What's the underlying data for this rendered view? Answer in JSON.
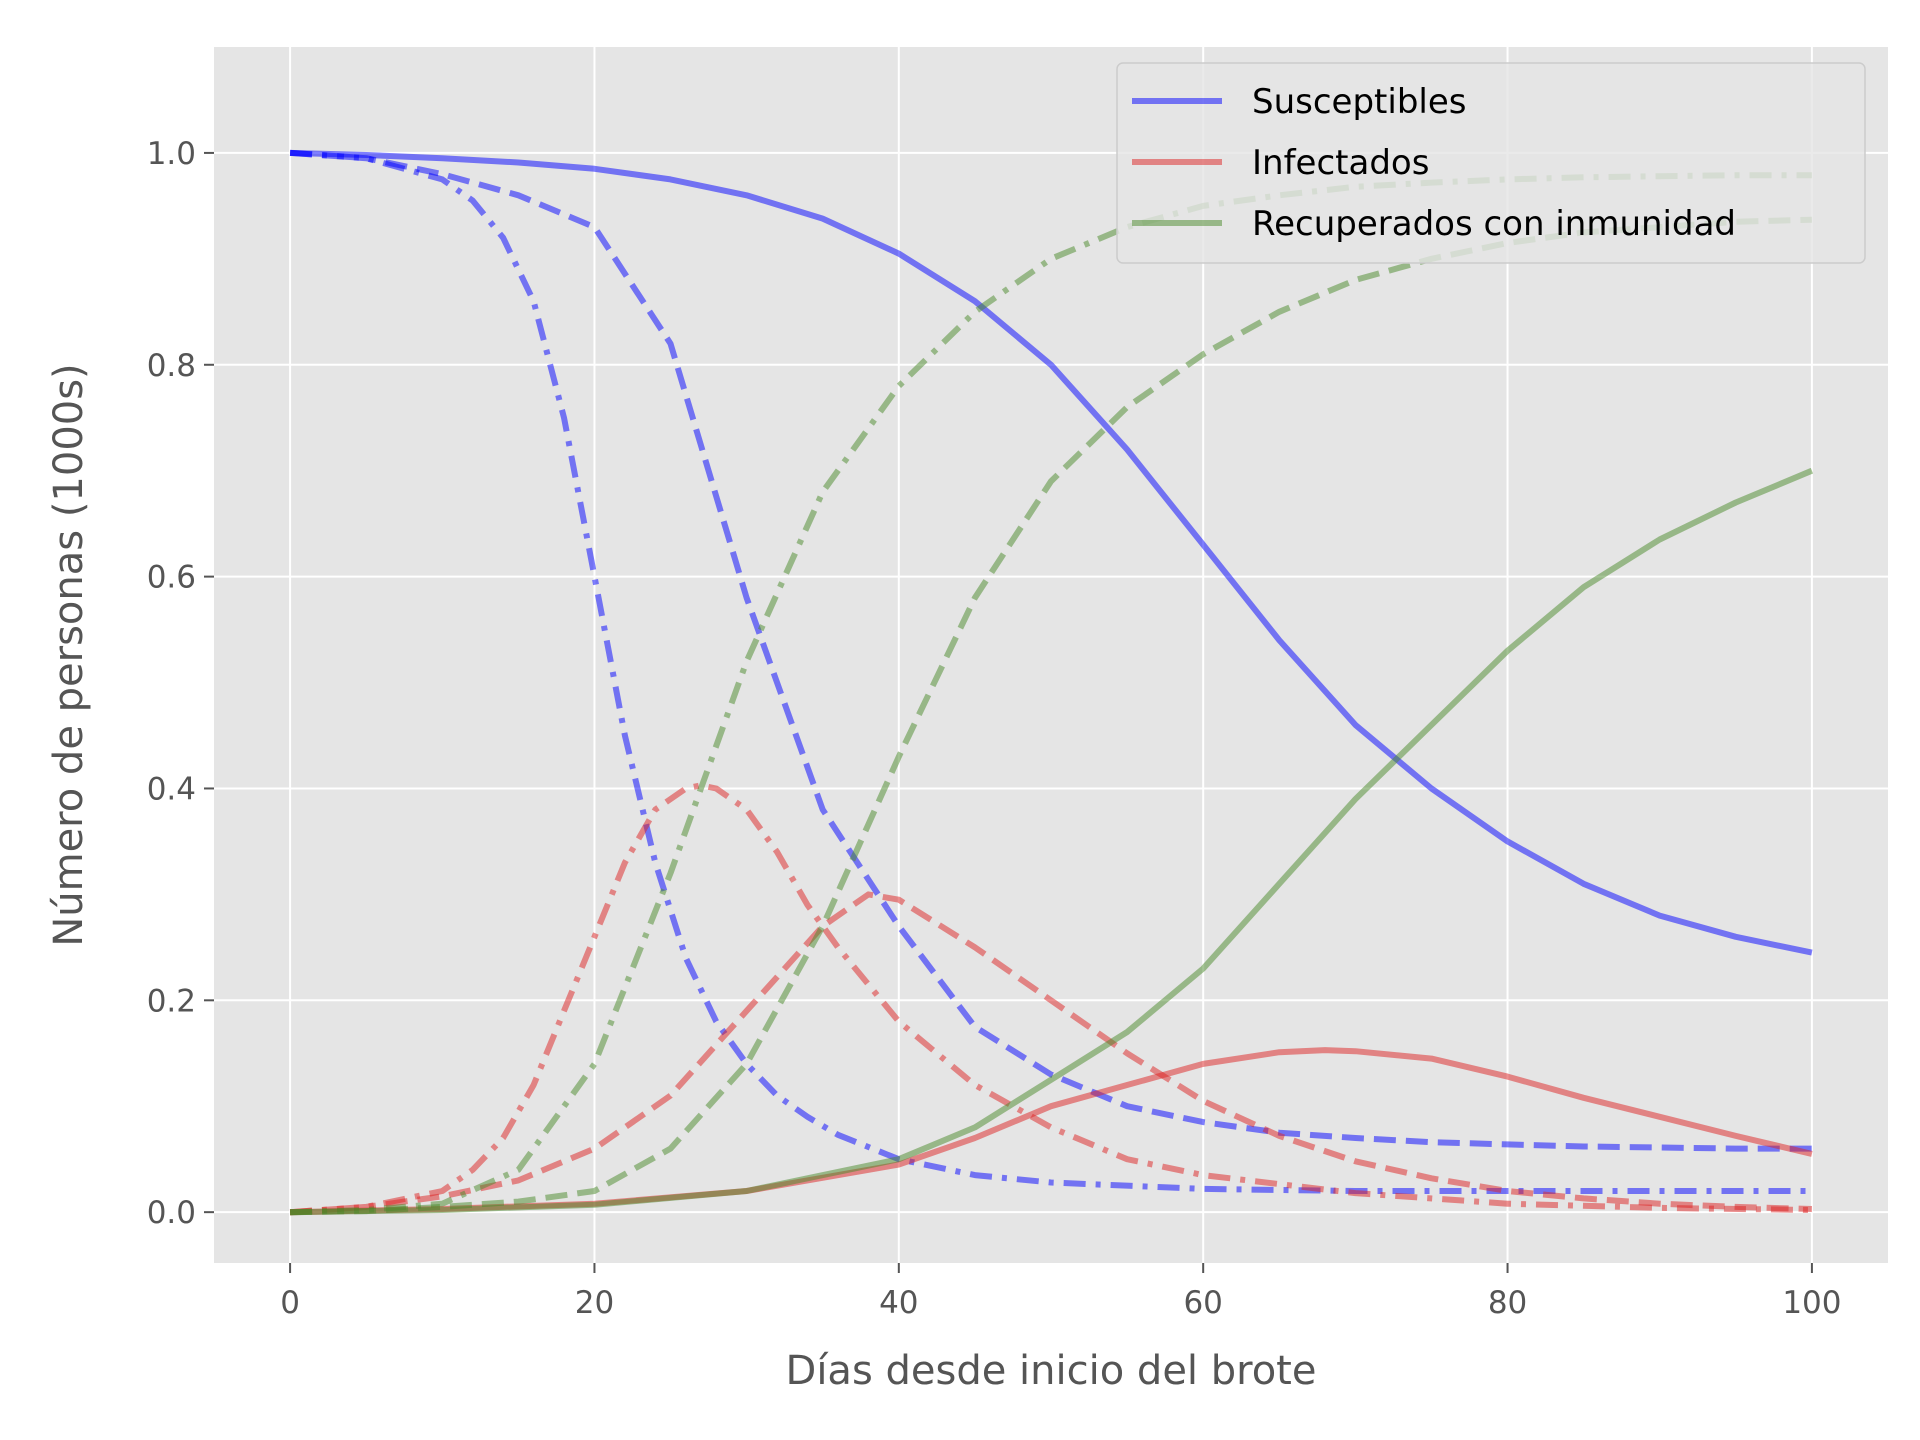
{
  "chart_data": {
    "type": "line",
    "xlabel": "Días desde inicio del brote",
    "ylabel": "Número de personas (1000s)",
    "xlim": [
      -5,
      105
    ],
    "ylim": [
      -0.048,
      1.1
    ],
    "xticks": [
      0,
      20,
      40,
      60,
      80,
      100
    ],
    "xtick_labels": [
      "0",
      "20",
      "40",
      "60",
      "80",
      "100"
    ],
    "yticks": [
      0.0,
      0.2,
      0.4,
      0.6,
      0.8,
      1.0
    ],
    "ytick_labels": [
      "0.0",
      "0.2",
      "0.4",
      "0.6",
      "0.8",
      "1.0"
    ],
    "grid": true,
    "legend_position": "top-right",
    "legend": [
      {
        "label": "Susceptibles",
        "color": "#0000ff"
      },
      {
        "label": "Infectados",
        "color": "#dd2222"
      },
      {
        "label": "Recuperados con inmunidad",
        "color": "#4a8a2a"
      }
    ],
    "series": [
      {
        "group": "Susceptibles",
        "style": "solid",
        "color": "#0000ff",
        "x": [
          0,
          5,
          10,
          15,
          20,
          25,
          30,
          35,
          40,
          45,
          50,
          55,
          60,
          65,
          70,
          75,
          80,
          85,
          90,
          95,
          100
        ],
        "y": [
          1.0,
          0.998,
          0.995,
          0.991,
          0.985,
          0.975,
          0.96,
          0.938,
          0.905,
          0.86,
          0.8,
          0.72,
          0.63,
          0.54,
          0.46,
          0.4,
          0.35,
          0.31,
          0.28,
          0.26,
          0.245
        ]
      },
      {
        "group": "Susceptibles",
        "style": "dashed",
        "color": "#0000ff",
        "x": [
          0,
          5,
          10,
          15,
          20,
          25,
          30,
          35,
          40,
          45,
          50,
          55,
          60,
          65,
          70,
          75,
          80,
          85,
          90,
          95,
          100
        ],
        "y": [
          1.0,
          0.995,
          0.98,
          0.96,
          0.93,
          0.82,
          0.58,
          0.38,
          0.27,
          0.175,
          0.13,
          0.1,
          0.085,
          0.075,
          0.07,
          0.066,
          0.064,
          0.062,
          0.061,
          0.06,
          0.06
        ]
      },
      {
        "group": "Susceptibles",
        "style": "dashdot",
        "color": "#0000ff",
        "x": [
          0,
          5,
          10,
          12,
          14,
          16,
          18,
          20,
          22,
          24,
          26,
          28,
          30,
          32,
          34,
          36,
          40,
          45,
          50,
          60,
          70,
          80,
          90,
          100
        ],
        "y": [
          1.0,
          0.995,
          0.975,
          0.955,
          0.92,
          0.86,
          0.75,
          0.6,
          0.45,
          0.33,
          0.24,
          0.18,
          0.14,
          0.11,
          0.09,
          0.073,
          0.05,
          0.035,
          0.028,
          0.022,
          0.02,
          0.02,
          0.02,
          0.02
        ]
      },
      {
        "group": "Infectados",
        "style": "solid",
        "color": "#dd2222",
        "x": [
          0,
          10,
          20,
          30,
          40,
          45,
          50,
          55,
          60,
          65,
          68,
          70,
          75,
          80,
          85,
          90,
          95,
          100
        ],
        "y": [
          0.0,
          0.003,
          0.008,
          0.02,
          0.045,
          0.07,
          0.1,
          0.12,
          0.14,
          0.151,
          0.153,
          0.152,
          0.145,
          0.128,
          0.108,
          0.09,
          0.072,
          0.055
        ]
      },
      {
        "group": "Infectados",
        "style": "dashed",
        "color": "#dd2222",
        "x": [
          0,
          5,
          10,
          15,
          20,
          25,
          30,
          35,
          38,
          40,
          45,
          50,
          55,
          60,
          65,
          70,
          75,
          80,
          85,
          90,
          95,
          100
        ],
        "y": [
          0.0,
          0.005,
          0.015,
          0.03,
          0.06,
          0.11,
          0.19,
          0.27,
          0.3,
          0.295,
          0.25,
          0.2,
          0.15,
          0.105,
          0.072,
          0.048,
          0.032,
          0.02,
          0.013,
          0.008,
          0.005,
          0.003
        ]
      },
      {
        "group": "Infectados",
        "style": "dashdot",
        "color": "#dd2222",
        "x": [
          0,
          5,
          10,
          12,
          14,
          16,
          18,
          20,
          22,
          24,
          26,
          27,
          28,
          30,
          32,
          34,
          36,
          40,
          45,
          50,
          55,
          60,
          70,
          80,
          90,
          100
        ],
        "y": [
          0.0,
          0.005,
          0.02,
          0.04,
          0.07,
          0.12,
          0.19,
          0.26,
          0.33,
          0.38,
          0.4,
          0.403,
          0.4,
          0.38,
          0.34,
          0.29,
          0.25,
          0.18,
          0.12,
          0.08,
          0.05,
          0.035,
          0.018,
          0.008,
          0.004,
          0.002
        ]
      },
      {
        "group": "Recuperados con inmunidad",
        "style": "solid",
        "color": "#4a8a2a",
        "x": [
          0,
          10,
          20,
          30,
          40,
          45,
          50,
          55,
          60,
          65,
          70,
          75,
          80,
          85,
          90,
          95,
          100
        ],
        "y": [
          0.0,
          0.002,
          0.007,
          0.02,
          0.05,
          0.08,
          0.125,
          0.17,
          0.23,
          0.31,
          0.39,
          0.46,
          0.53,
          0.59,
          0.635,
          0.67,
          0.7
        ]
      },
      {
        "group": "Recuperados con inmunidad",
        "style": "dashed",
        "color": "#4a8a2a",
        "x": [
          0,
          5,
          10,
          15,
          20,
          25,
          30,
          35,
          40,
          45,
          50,
          55,
          60,
          65,
          70,
          75,
          80,
          85,
          90,
          95,
          100
        ],
        "y": [
          0.0,
          0.001,
          0.005,
          0.01,
          0.02,
          0.06,
          0.14,
          0.27,
          0.43,
          0.58,
          0.69,
          0.76,
          0.81,
          0.85,
          0.88,
          0.9,
          0.915,
          0.925,
          0.93,
          0.935,
          0.937
        ]
      },
      {
        "group": "Recuperados con inmunidad",
        "style": "dashdot",
        "color": "#4a8a2a",
        "x": [
          0,
          5,
          10,
          15,
          20,
          25,
          30,
          35,
          40,
          45,
          50,
          55,
          60,
          65,
          70,
          75,
          80,
          85,
          90,
          95,
          100
        ],
        "y": [
          0.0,
          0.002,
          0.008,
          0.04,
          0.14,
          0.32,
          0.52,
          0.68,
          0.78,
          0.85,
          0.9,
          0.93,
          0.95,
          0.96,
          0.968,
          0.972,
          0.975,
          0.977,
          0.978,
          0.979,
          0.979
        ]
      }
    ]
  }
}
